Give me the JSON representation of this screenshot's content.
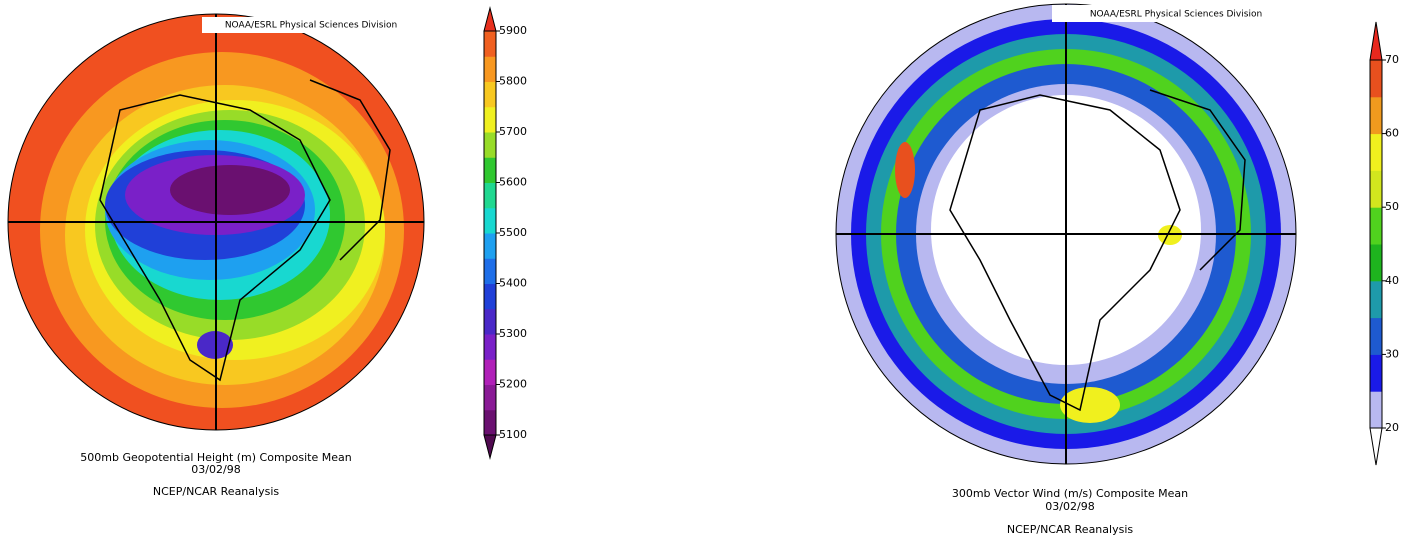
{
  "maps": [
    {
      "header": "NOAA/ESRL Physical Sciences Division",
      "title": "500mb Geopotential Height (m) Composite Mean",
      "date": "03/02/98",
      "source": "NCEP/NCAR Reanalysis",
      "colorbar": {
        "lim": [
          5100,
          5900
        ],
        "ticks": [
          5100,
          5200,
          5300,
          5400,
          5500,
          5600,
          5700,
          5800,
          5900
        ],
        "under": "#500a50",
        "over": "#e8301e",
        "colors": [
          "#6a1070",
          "#8a1a96",
          "#b020b8",
          "#7a20c8",
          "#4a28c8",
          "#2040d8",
          "#1e6ee8",
          "#1ea0f0",
          "#18d8d0",
          "#20d890",
          "#30c830",
          "#98dc28",
          "#f0f020",
          "#f8c820",
          "#f89820",
          "#f06020"
        ]
      }
    },
    {
      "header": "NOAA/ESRL Physical Sciences Division",
      "title": "300mb Vector Wind (m/s) Composite Mean",
      "date": "03/02/98",
      "source": "NCEP/NCAR Reanalysis",
      "colorbar": {
        "lim": [
          20,
          70
        ],
        "ticks": [
          20,
          30,
          40,
          50,
          60,
          70
        ],
        "under": "#ffffff",
        "over": "#e8281e",
        "colors": [
          "#b8b8f0",
          "#1a1ae8",
          "#1e5ad0",
          "#1e9aaa",
          "#1eb41e",
          "#50d21e",
          "#d2e61e",
          "#f0f01e",
          "#f09a1e",
          "#e8501e"
        ]
      }
    }
  ]
}
